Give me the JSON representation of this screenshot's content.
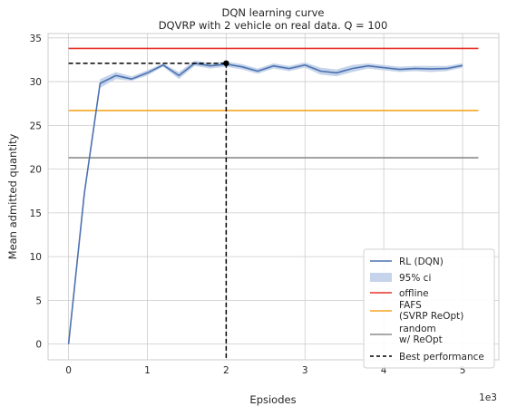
{
  "chart_data": {
    "type": "line",
    "title": "DQN learning curve",
    "subtitle": "DQVRP with 2 vehicle on real data. Q = 100",
    "xlabel": "Epsiodes",
    "ylabel": "Mean admitted quantity",
    "x_offset_label": "1e3",
    "xlim": [
      -0.26,
      5.46
    ],
    "ylim": [
      -1.8,
      35.5
    ],
    "x_ticks": [
      0,
      1,
      2,
      3,
      4,
      5
    ],
    "x_tick_labels": [
      "0",
      "1",
      "2",
      "3",
      "4",
      "5"
    ],
    "y_ticks": [
      0,
      5,
      10,
      15,
      20,
      25,
      30,
      35
    ],
    "y_tick_labels": [
      "0",
      "5",
      "10",
      "15",
      "20",
      "25",
      "30",
      "35"
    ],
    "grid": true,
    "legend_position": "lower-right",
    "series": [
      {
        "name": "RL (DQN)",
        "kind": "line",
        "color": "#4c72b0",
        "x": [
          0,
          0.2,
          0.4,
          0.6,
          0.8,
          1.0,
          1.2,
          1.4,
          1.6,
          1.8,
          2.0,
          2.2,
          2.4,
          2.6,
          2.8,
          3.0,
          3.2,
          3.4,
          3.6,
          3.8,
          4.0,
          4.2,
          4.4,
          4.6,
          4.8,
          5.0
        ],
        "y": [
          0,
          17.2,
          29.8,
          30.7,
          30.3,
          31.0,
          31.9,
          30.7,
          32.1,
          31.8,
          32.0,
          31.7,
          31.2,
          31.8,
          31.5,
          31.9,
          31.2,
          31.0,
          31.5,
          31.8,
          31.6,
          31.4,
          31.5,
          31.45,
          31.5,
          31.85
        ]
      },
      {
        "name": "95% ci",
        "kind": "band",
        "color": "#c5d4ea",
        "x": [
          0,
          0.2,
          0.4,
          0.6,
          0.8,
          1.0,
          1.2,
          1.4,
          1.6,
          1.8,
          2.0,
          2.2,
          2.4,
          2.6,
          2.8,
          3.0,
          3.2,
          3.4,
          3.6,
          3.8,
          4.0,
          4.2,
          4.4,
          4.6,
          4.8,
          5.0
        ],
        "lower": [
          0,
          17.0,
          29.3,
          30.3,
          30.1,
          30.7,
          31.7,
          30.3,
          31.8,
          31.5,
          31.7,
          31.4,
          30.9,
          31.5,
          31.2,
          31.6,
          30.8,
          30.6,
          31.1,
          31.5,
          31.3,
          31.1,
          31.2,
          31.1,
          31.2,
          31.6
        ],
        "upper": [
          0,
          17.4,
          30.3,
          31.1,
          30.6,
          31.3,
          32.1,
          31.1,
          32.4,
          32.1,
          32.3,
          32.0,
          31.5,
          32.1,
          31.8,
          32.2,
          31.6,
          31.4,
          31.9,
          32.1,
          31.9,
          31.7,
          31.8,
          31.8,
          31.8,
          32.1
        ]
      },
      {
        "name": "offline",
        "kind": "hline",
        "color": "#e8302a",
        "y": 33.8,
        "x_range": [
          0,
          5.2
        ]
      },
      {
        "name": "FAFS\n(SVRP ReOpt)",
        "kind": "hline",
        "color": "#f5a623",
        "y": 26.7,
        "x_range": [
          0,
          5.2
        ]
      },
      {
        "name": "random\nw/ ReOpt",
        "kind": "hline",
        "color": "#8c8c8c",
        "y": 21.3,
        "x_range": [
          0,
          5.2
        ]
      },
      {
        "name": "Best performance",
        "kind": "marker-lines",
        "color": "#000000",
        "point": {
          "x": 2.0,
          "y": 32.1
        }
      }
    ]
  }
}
